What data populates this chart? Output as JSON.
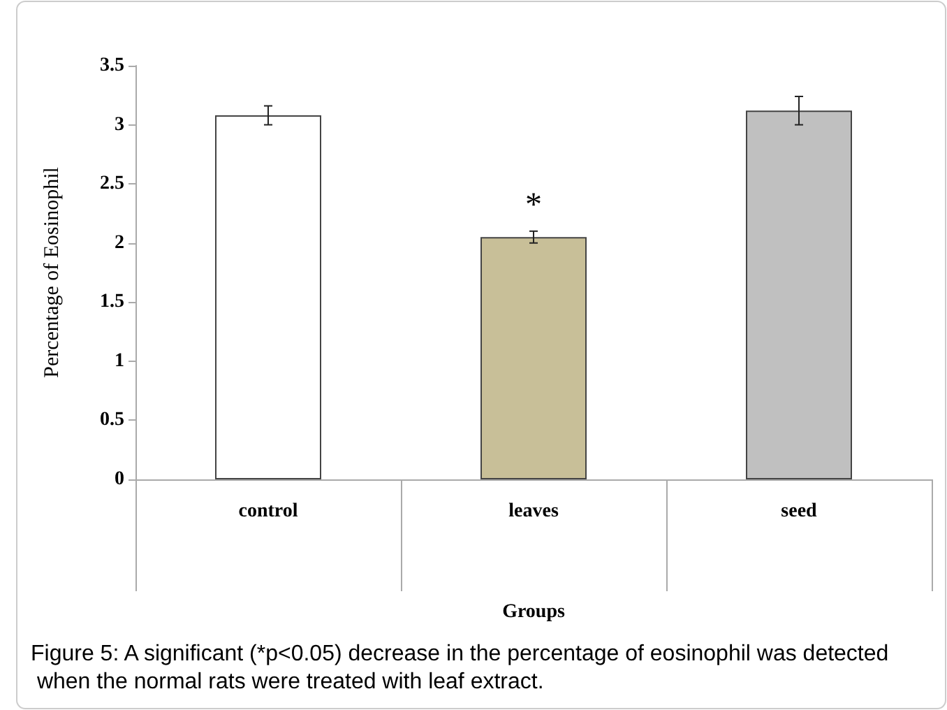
{
  "chart_data": {
    "type": "bar",
    "xlabel": "Groups",
    "ylabel": "Percentage of Eosinophil",
    "categories": [
      "control",
      "leaves",
      "seed"
    ],
    "values": [
      3.08,
      2.05,
      3.12
    ],
    "colors": [
      "#ffffff",
      "#c8bf98",
      "#c0c0c0"
    ],
    "errors": [
      0.08,
      0.05,
      0.12
    ],
    "ylim": [
      0,
      3.5
    ],
    "yticks": [
      0,
      0.5,
      1,
      1.5,
      2,
      2.5,
      3,
      3.5
    ],
    "grid": false,
    "annotations": [
      "*",
      "Figure 5: A significant (*p<0.05) decrease in the percentage of eosinophil was detected when the normal rats were treated with leaf extract."
    ]
  }
}
